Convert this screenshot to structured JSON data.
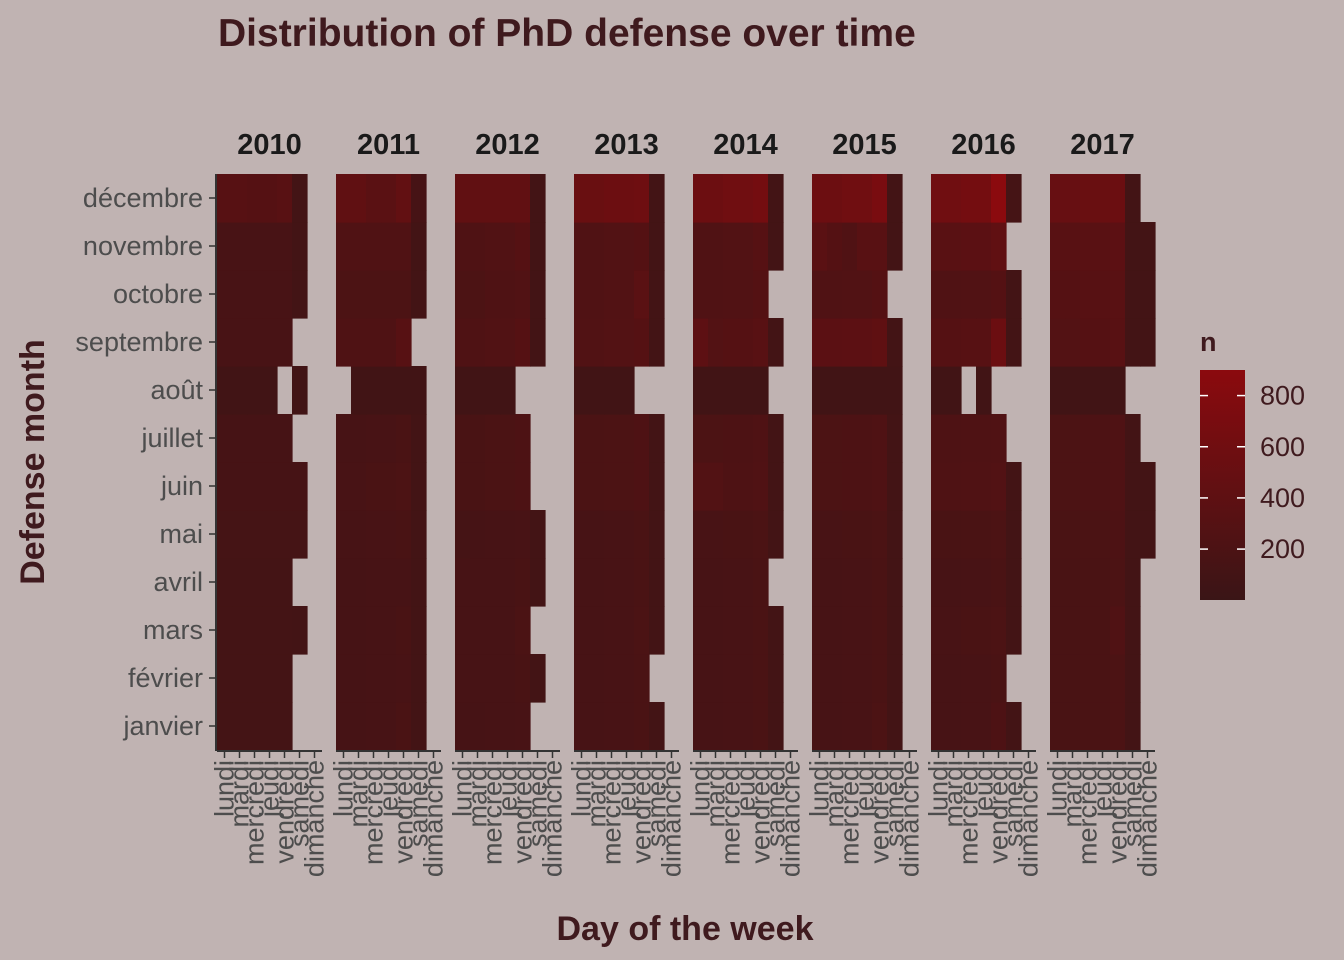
{
  "chart_data": {
    "type": "heatmap",
    "title": "Distribution of PhD defense over time",
    "xlabel": "Day of the week",
    "ylabel": "Defense month",
    "facets": [
      "2010",
      "2011",
      "2012",
      "2013",
      "2014",
      "2015",
      "2016",
      "2017"
    ],
    "days": [
      "lundi",
      "mardi",
      "mercredi",
      "jeudi",
      "vendredi",
      "samedi",
      "dimanche"
    ],
    "months": [
      "janvier",
      "février",
      "mars",
      "avril",
      "mai",
      "juin",
      "juillet",
      "août",
      "septembre",
      "octobre",
      "novembre",
      "décembre"
    ],
    "legend": {
      "title": "n",
      "breaks": [
        200,
        400,
        600,
        800
      ],
      "min": 1,
      "max": 900,
      "low_color": "#3a1516",
      "high_color": "#8b0a0e"
    },
    "values": {
      "2010": [
        [
          110,
          110,
          110,
          110,
          110,
          null,
          null
        ],
        [
          110,
          110,
          110,
          110,
          110,
          null,
          null
        ],
        [
          110,
          110,
          110,
          110,
          110,
          100,
          null
        ],
        [
          110,
          110,
          110,
          110,
          110,
          null,
          null
        ],
        [
          120,
          120,
          120,
          120,
          120,
          120,
          null
        ],
        [
          130,
          130,
          130,
          130,
          130,
          130,
          null
        ],
        [
          130,
          130,
          130,
          130,
          130,
          null,
          null
        ],
        [
          80,
          80,
          80,
          80,
          null,
          80,
          null
        ],
        [
          160,
          160,
          160,
          160,
          160,
          null,
          null
        ],
        [
          160,
          160,
          160,
          160,
          160,
          100,
          null
        ],
        [
          160,
          160,
          160,
          160,
          160,
          100,
          null
        ],
        [
          320,
          320,
          300,
          300,
          330,
          100,
          null
        ]
      ],
      "2011": [
        [
          130,
          130,
          140,
          140,
          180,
          100,
          null
        ],
        [
          130,
          130,
          140,
          140,
          160,
          100,
          null
        ],
        [
          130,
          130,
          140,
          140,
          170,
          100,
          null
        ],
        [
          130,
          130,
          140,
          140,
          150,
          100,
          null
        ],
        [
          140,
          140,
          160,
          160,
          170,
          100,
          null
        ],
        [
          160,
          160,
          180,
          180,
          200,
          100,
          null
        ],
        [
          150,
          150,
          160,
          160,
          180,
          100,
          null
        ],
        [
          null,
          80,
          80,
          80,
          80,
          80,
          null
        ],
        [
          230,
          230,
          230,
          230,
          320,
          null,
          null
        ],
        [
          200,
          200,
          200,
          200,
          200,
          100,
          null
        ],
        [
          240,
          240,
          240,
          240,
          240,
          100,
          null
        ],
        [
          420,
          420,
          360,
          360,
          450,
          130,
          null
        ]
      ],
      "2012": [
        [
          130,
          130,
          140,
          140,
          160,
          null,
          null
        ],
        [
          140,
          140,
          150,
          150,
          170,
          100,
          null
        ],
        [
          140,
          140,
          150,
          150,
          190,
          null,
          null
        ],
        [
          140,
          140,
          150,
          150,
          170,
          100,
          null
        ],
        [
          120,
          130,
          150,
          140,
          160,
          100,
          null
        ],
        [
          170,
          170,
          190,
          190,
          210,
          null,
          null
        ],
        [
          170,
          170,
          190,
          190,
          210,
          null,
          null
        ],
        [
          80,
          80,
          80,
          80,
          null,
          null,
          null
        ],
        [
          230,
          230,
          260,
          260,
          300,
          100,
          null
        ],
        [
          200,
          200,
          230,
          230,
          260,
          100,
          null
        ],
        [
          230,
          230,
          260,
          260,
          300,
          100,
          null
        ],
        [
          430,
          430,
          430,
          430,
          430,
          100,
          null
        ]
      ],
      "2013": [
        [
          150,
          150,
          160,
          160,
          180,
          100,
          null
        ],
        [
          150,
          150,
          160,
          160,
          180,
          null,
          null
        ],
        [
          150,
          150,
          160,
          160,
          190,
          100,
          null
        ],
        [
          150,
          150,
          160,
          160,
          180,
          100,
          null
        ],
        [
          150,
          150,
          160,
          160,
          180,
          100,
          null
        ],
        [
          190,
          190,
          200,
          200,
          220,
          100,
          null
        ],
        [
          190,
          190,
          200,
          200,
          220,
          100,
          null
        ],
        [
          80,
          80,
          80,
          80,
          null,
          null,
          null
        ],
        [
          260,
          260,
          280,
          280,
          300,
          100,
          null
        ],
        [
          250,
          250,
          270,
          270,
          360,
          100,
          null
        ],
        [
          250,
          250,
          270,
          270,
          290,
          100,
          null
        ],
        [
          520,
          520,
          560,
          560,
          580,
          100,
          null
        ]
      ],
      "2014": [
        [
          150,
          150,
          160,
          160,
          180,
          100,
          null
        ],
        [
          150,
          150,
          160,
          160,
          180,
          100,
          null
        ],
        [
          150,
          150,
          160,
          160,
          180,
          100,
          null
        ],
        [
          150,
          150,
          160,
          160,
          180,
          null,
          null
        ],
        [
          160,
          160,
          170,
          170,
          190,
          100,
          null
        ],
        [
          270,
          270,
          220,
          220,
          240,
          100,
          null
        ],
        [
          200,
          200,
          210,
          210,
          230,
          100,
          null
        ],
        [
          80,
          80,
          80,
          80,
          80,
          null,
          null
        ],
        [
          390,
          280,
          300,
          300,
          330,
          100,
          null
        ],
        [
          250,
          250,
          260,
          260,
          290,
          null,
          null
        ],
        [
          250,
          250,
          270,
          270,
          310,
          100,
          null
        ],
        [
          560,
          560,
          600,
          600,
          650,
          100,
          null
        ]
      ],
      "2015": [
        [
          150,
          150,
          160,
          160,
          200,
          100,
          null
        ],
        [
          150,
          150,
          160,
          160,
          180,
          100,
          null
        ],
        [
          150,
          150,
          160,
          160,
          180,
          100,
          null
        ],
        [
          150,
          150,
          160,
          160,
          180,
          100,
          null
        ],
        [
          160,
          160,
          170,
          170,
          190,
          100,
          null
        ],
        [
          200,
          200,
          210,
          210,
          230,
          100,
          null
        ],
        [
          200,
          200,
          210,
          210,
          230,
          100,
          null
        ],
        [
          80,
          80,
          80,
          80,
          80,
          80,
          null
        ],
        [
          370,
          370,
          380,
          380,
          410,
          100,
          null
        ],
        [
          250,
          250,
          260,
          260,
          290,
          null,
          null
        ],
        [
          360,
          290,
          250,
          330,
          330,
          100,
          null
        ],
        [
          560,
          560,
          600,
          600,
          700,
          100,
          null
        ]
      ],
      "2016": [
        [
          150,
          150,
          160,
          160,
          210,
          100,
          null
        ],
        [
          150,
          150,
          160,
          160,
          180,
          null,
          null
        ],
        [
          160,
          160,
          180,
          180,
          200,
          100,
          null
        ],
        [
          150,
          150,
          160,
          160,
          180,
          100,
          null
        ],
        [
          170,
          170,
          180,
          180,
          200,
          100,
          null
        ],
        [
          230,
          230,
          240,
          240,
          270,
          100,
          null
        ],
        [
          220,
          220,
          230,
          230,
          250,
          null,
          null
        ],
        [
          80,
          80,
          null,
          80,
          null,
          null,
          null
        ],
        [
          300,
          300,
          320,
          320,
          540,
          100,
          null
        ],
        [
          250,
          250,
          260,
          260,
          290,
          100,
          null
        ],
        [
          350,
          350,
          370,
          370,
          420,
          null,
          null
        ],
        [
          600,
          600,
          640,
          640,
          900,
          120,
          null
        ]
      ],
      "2017": [
        [
          170,
          170,
          180,
          180,
          200,
          100,
          null
        ],
        [
          170,
          170,
          180,
          180,
          200,
          100,
          null
        ],
        [
          170,
          170,
          180,
          180,
          240,
          100,
          null
        ],
        [
          170,
          170,
          180,
          180,
          200,
          100,
          null
        ],
        [
          180,
          180,
          190,
          190,
          210,
          100,
          100
        ],
        [
          200,
          200,
          210,
          210,
          230,
          100,
          100
        ],
        [
          200,
          200,
          210,
          210,
          230,
          100,
          null
        ],
        [
          80,
          80,
          80,
          80,
          80,
          null,
          null
        ],
        [
          280,
          280,
          300,
          300,
          330,
          100,
          100
        ],
        [
          300,
          300,
          320,
          320,
          350,
          100,
          100
        ],
        [
          330,
          330,
          350,
          350,
          380,
          100,
          100
        ],
        [
          500,
          500,
          520,
          520,
          540,
          100,
          null
        ]
      ]
    }
  }
}
